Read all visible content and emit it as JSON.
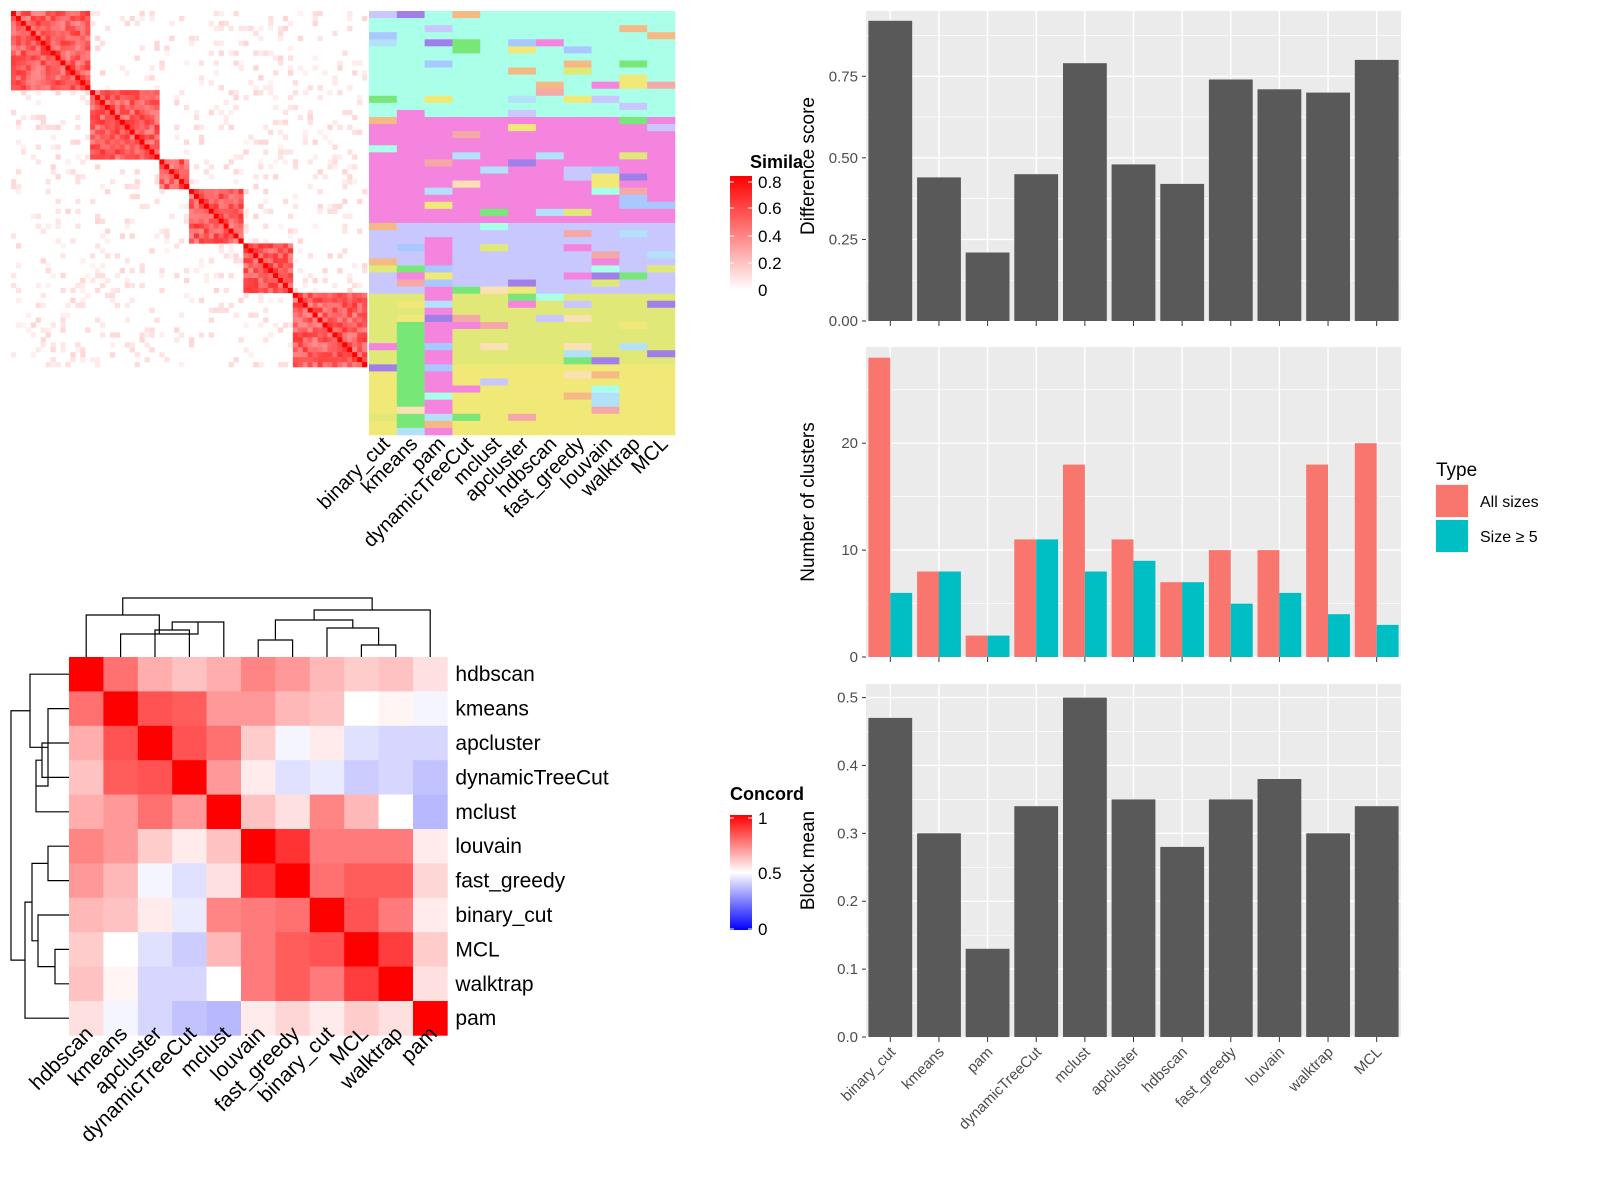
{
  "methods_order": [
    "binary_cut",
    "kmeans",
    "pam",
    "dynamicTreeCut",
    "mclust",
    "apcluster",
    "hdbscan",
    "fast_greedy",
    "louvain",
    "walktrap",
    "MCL"
  ],
  "colors": {
    "panel_bg": "#EBEBEB",
    "grid": "#FFFFFF",
    "bar": "#595959",
    "all_sizes": "#F8766D",
    "size_ge5": "#00BFC4",
    "sim_high": "#FF0000",
    "sim_low": "#FFFFFF",
    "conc_high": "#FF0000",
    "conc_mid": "#FFFFFF",
    "conc_low": "#0000FF"
  },
  "similarity_legend": {
    "title": "Simila",
    "ticks": [
      "0.8",
      "0.6",
      "0.4",
      "0.2",
      "0"
    ]
  },
  "concordance_legend": {
    "title": "Concord",
    "ticks": [
      "1",
      "0.5",
      "0"
    ]
  },
  "membership_palette": [
    "#AAFFE8",
    "#F584DF",
    "#C8C8FF",
    "#E0E877",
    "#A17FE8",
    "#77E877",
    "#F5B986",
    "#F0E877",
    "#FAE1B3",
    "#B3E1FA",
    "#A8C8FF",
    "#F5A8A8"
  ],
  "concordance": {
    "rows": [
      "hdbscan",
      "kmeans",
      "apcluster",
      "dynamicTreeCut",
      "mclust",
      "louvain",
      "fast_greedy",
      "binary_cut",
      "MCL",
      "walktrap",
      "pam"
    ],
    "cols": [
      "hdbscan",
      "kmeans",
      "apcluster",
      "dynamicTreeCut",
      "mclust",
      "louvain",
      "fast_greedy",
      "binary_cut",
      "MCL",
      "walktrap",
      "pam"
    ],
    "values": [
      [
        1.0,
        0.78,
        0.66,
        0.62,
        0.66,
        0.74,
        0.7,
        0.64,
        0.6,
        0.62,
        0.56
      ],
      [
        0.78,
        1.0,
        0.84,
        0.82,
        0.7,
        0.7,
        0.64,
        0.62,
        0.5,
        0.52,
        0.48
      ],
      [
        0.66,
        0.84,
        1.0,
        0.84,
        0.78,
        0.6,
        0.48,
        0.54,
        0.44,
        0.42,
        0.42
      ],
      [
        0.62,
        0.82,
        0.84,
        1.0,
        0.7,
        0.54,
        0.44,
        0.46,
        0.4,
        0.42,
        0.38
      ],
      [
        0.66,
        0.7,
        0.78,
        0.7,
        1.0,
        0.62,
        0.56,
        0.74,
        0.64,
        0.5,
        0.36
      ],
      [
        0.74,
        0.7,
        0.6,
        0.54,
        0.62,
        1.0,
        0.9,
        0.76,
        0.76,
        0.76,
        0.54
      ],
      [
        0.7,
        0.64,
        0.48,
        0.44,
        0.56,
        0.9,
        1.0,
        0.78,
        0.82,
        0.82,
        0.58
      ],
      [
        0.64,
        0.62,
        0.54,
        0.46,
        0.74,
        0.76,
        0.78,
        1.0,
        0.84,
        0.76,
        0.54
      ],
      [
        0.6,
        0.5,
        0.44,
        0.4,
        0.64,
        0.76,
        0.82,
        0.84,
        1.0,
        0.88,
        0.6
      ],
      [
        0.62,
        0.52,
        0.42,
        0.42,
        0.5,
        0.76,
        0.82,
        0.76,
        0.88,
        1.0,
        0.56
      ],
      [
        0.56,
        0.48,
        0.42,
        0.38,
        0.36,
        0.54,
        0.58,
        0.54,
        0.6,
        0.56,
        1.0
      ]
    ]
  },
  "chart_data": [
    {
      "type": "bar",
      "categories": [
        "binary_cut",
        "kmeans",
        "pam",
        "dynamicTreeCut",
        "mclust",
        "apcluster",
        "hdbscan",
        "fast_greedy",
        "louvain",
        "walktrap",
        "MCL"
      ],
      "values": [
        0.92,
        0.44,
        0.21,
        0.45,
        0.79,
        0.48,
        0.42,
        0.74,
        0.71,
        0.7,
        0.8
      ],
      "xlabel": "",
      "ylabel": "Difference score",
      "ylim": [
        0,
        0.95
      ],
      "yticks": [
        "0.00",
        "0.25",
        "0.50",
        "0.75"
      ],
      "show_x_labels": false,
      "grid": true
    },
    {
      "type": "bar",
      "categories": [
        "binary_cut",
        "kmeans",
        "pam",
        "dynamicTreeCut",
        "mclust",
        "apcluster",
        "hdbscan",
        "fast_greedy",
        "louvain",
        "walktrap",
        "MCL"
      ],
      "series": [
        {
          "name": "All sizes",
          "values": [
            28,
            8,
            2,
            11,
            18,
            11,
            7,
            10,
            10,
            18,
            20
          ]
        },
        {
          "name": "Size ≥ 5",
          "values": [
            6,
            8,
            2,
            11,
            8,
            9,
            7,
            5,
            6,
            4,
            3
          ]
        }
      ],
      "legend": {
        "title": "Type",
        "entries": [
          "All sizes",
          "Size ≥ 5"
        ],
        "placement": "right"
      },
      "xlabel": "",
      "ylabel": "Number of clusters",
      "ylim": [
        0,
        29
      ],
      "yticks": [
        "0",
        "10",
        "20"
      ],
      "show_x_labels": false,
      "grid": true
    },
    {
      "type": "bar",
      "categories": [
        "binary_cut",
        "kmeans",
        "pam",
        "dynamicTreeCut",
        "mclust",
        "apcluster",
        "hdbscan",
        "fast_greedy",
        "louvain",
        "walktrap",
        "MCL"
      ],
      "values": [
        0.47,
        0.3,
        0.13,
        0.34,
        0.5,
        0.35,
        0.28,
        0.35,
        0.38,
        0.3,
        0.34
      ],
      "xlabel": "",
      "ylabel": "Block mean",
      "ylim": [
        0,
        0.52
      ],
      "yticks": [
        "0.0",
        "0.1",
        "0.2",
        "0.3",
        "0.4",
        "0.5"
      ],
      "show_x_labels": true,
      "grid": true
    }
  ]
}
